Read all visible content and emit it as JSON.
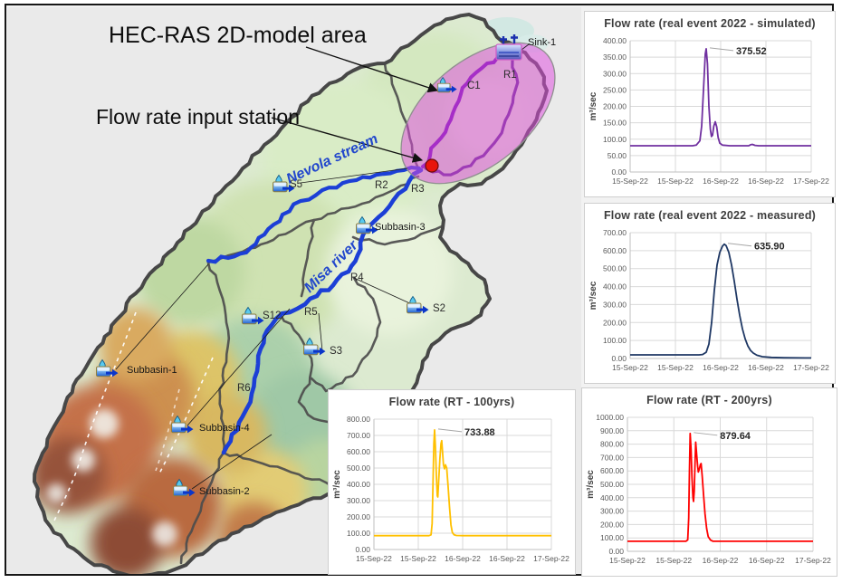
{
  "map": {
    "labels": {
      "model_area": "HEC-RAS 2D-model area",
      "input_station": "Flow rate input station",
      "nevola": "Nevola stream",
      "misa": "Misa river",
      "sink1": "Sink-1",
      "r1": "R1",
      "c1": "C1",
      "r2": "R2",
      "r3": "R3",
      "r4": "R4",
      "r5": "R5",
      "r6": "R6",
      "s2": "S2",
      "s3": "S3",
      "s5": "S5",
      "s12": "S12",
      "subbasin1": "Subbasin-1",
      "subbasin2": "Subbasin-2",
      "subbasin3": "Subbasin-3",
      "subbasin4": "Subbasin-4"
    }
  },
  "chart_data": [
    {
      "type": "line",
      "title": "Flow rate (real event 2022 - simulated)",
      "ylabel": "m³/sec",
      "ylim": [
        0,
        400
      ],
      "ytick_step": 50,
      "x_ticklabels": [
        "15-Sep-22",
        "15-Sep-22",
        "16-Sep-22",
        "16-Sep-22",
        "17-Sep-22"
      ],
      "line_color": "#7030A0",
      "grid": true,
      "legend": "none",
      "annotation": {
        "text": "375.52",
        "x": 0.42,
        "y": 375.52
      },
      "series": [
        [
          0,
          80
        ],
        [
          0.345,
          80
        ],
        [
          0.365,
          82
        ],
        [
          0.385,
          95
        ],
        [
          0.395,
          140
        ],
        [
          0.405,
          250
        ],
        [
          0.415,
          360
        ],
        [
          0.42,
          375.52
        ],
        [
          0.427,
          330
        ],
        [
          0.435,
          200
        ],
        [
          0.443,
          130
        ],
        [
          0.449,
          108
        ],
        [
          0.455,
          112
        ],
        [
          0.462,
          140
        ],
        [
          0.47,
          153
        ],
        [
          0.478,
          138
        ],
        [
          0.486,
          105
        ],
        [
          0.495,
          88
        ],
        [
          0.51,
          82
        ],
        [
          0.55,
          80
        ],
        [
          0.655,
          80
        ],
        [
          0.665,
          83
        ],
        [
          0.675,
          84
        ],
        [
          0.69,
          81
        ],
        [
          0.71,
          80
        ],
        [
          1,
          80
        ]
      ]
    },
    {
      "type": "line",
      "title": "Flow rate (real event 2022 - measured)",
      "ylabel": "m³/sec",
      "ylim": [
        0,
        700
      ],
      "ytick_step": 100,
      "x_ticklabels": [
        "15-Sep-22",
        "15-Sep-22",
        "16-Sep-22",
        "16-Sep-22",
        "17-Sep-22"
      ],
      "line_color": "#1F3864",
      "grid": true,
      "legend": "none",
      "annotation": {
        "text": "635.90",
        "x": 0.52,
        "y": 635.9
      },
      "series": [
        [
          0,
          20
        ],
        [
          0.38,
          20
        ],
        [
          0.4,
          22
        ],
        [
          0.42,
          35
        ],
        [
          0.435,
          80
        ],
        [
          0.45,
          200
        ],
        [
          0.465,
          380
        ],
        [
          0.48,
          520
        ],
        [
          0.495,
          590
        ],
        [
          0.51,
          625
        ],
        [
          0.52,
          635.9
        ],
        [
          0.53,
          628
        ],
        [
          0.545,
          590
        ],
        [
          0.56,
          520
        ],
        [
          0.575,
          430
        ],
        [
          0.59,
          330
        ],
        [
          0.605,
          240
        ],
        [
          0.62,
          165
        ],
        [
          0.635,
          110
        ],
        [
          0.65,
          70
        ],
        [
          0.665,
          45
        ],
        [
          0.68,
          30
        ],
        [
          0.7,
          18
        ],
        [
          0.73,
          10
        ],
        [
          0.78,
          6
        ],
        [
          0.85,
          4
        ],
        [
          1,
          3
        ]
      ]
    },
    {
      "type": "line",
      "title": "Flow rate (RT - 100yrs)",
      "ylabel": "m³/sec",
      "ylim": [
        0,
        800
      ],
      "ytick_step": 100,
      "x_ticklabels": [
        "15-Sep-22",
        "15-Sep-22",
        "16-Sep-22",
        "16-Sep-22",
        "17-Sep-22"
      ],
      "line_color": "#FFC000",
      "grid": true,
      "legend": "none",
      "annotation": {
        "text": "733.88",
        "x": 0.342,
        "y": 733.88
      },
      "series": [
        [
          0,
          85
        ],
        [
          0.31,
          85
        ],
        [
          0.322,
          90
        ],
        [
          0.328,
          160
        ],
        [
          0.333,
          420
        ],
        [
          0.338,
          650
        ],
        [
          0.342,
          733.88
        ],
        [
          0.347,
          620
        ],
        [
          0.352,
          450
        ],
        [
          0.357,
          330
        ],
        [
          0.36,
          322
        ],
        [
          0.365,
          420
        ],
        [
          0.372,
          560
        ],
        [
          0.378,
          650
        ],
        [
          0.382,
          668
        ],
        [
          0.387,
          590
        ],
        [
          0.392,
          520
        ],
        [
          0.398,
          495
        ],
        [
          0.403,
          520
        ],
        [
          0.41,
          500
        ],
        [
          0.418,
          390
        ],
        [
          0.426,
          260
        ],
        [
          0.434,
          150
        ],
        [
          0.442,
          105
        ],
        [
          0.452,
          90
        ],
        [
          0.465,
          86
        ],
        [
          0.5,
          85
        ],
        [
          1,
          85
        ]
      ]
    },
    {
      "type": "line",
      "title": "Flow rate (RT - 200yrs)",
      "ylabel": "m³/sec",
      "ylim": [
        0,
        1000
      ],
      "ytick_step": 100,
      "x_ticklabels": [
        "15-Sep-22",
        "15-Sep-22",
        "16-Sep-22",
        "16-Sep-22",
        "17-Sep-22"
      ],
      "line_color": "#FF0000",
      "grid": true,
      "legend": "none",
      "annotation": {
        "text": "879.64",
        "x": 0.338,
        "y": 879.64
      },
      "series": [
        [
          0,
          75
        ],
        [
          0.315,
          75
        ],
        [
          0.325,
          85
        ],
        [
          0.33,
          250
        ],
        [
          0.334,
          600
        ],
        [
          0.338,
          879.64
        ],
        [
          0.343,
          760
        ],
        [
          0.348,
          550
        ],
        [
          0.353,
          400
        ],
        [
          0.356,
          372
        ],
        [
          0.36,
          450
        ],
        [
          0.364,
          640
        ],
        [
          0.368,
          815
        ],
        [
          0.373,
          720
        ],
        [
          0.378,
          640
        ],
        [
          0.382,
          592
        ],
        [
          0.388,
          615
        ],
        [
          0.393,
          648
        ],
        [
          0.397,
          655
        ],
        [
          0.403,
          560
        ],
        [
          0.41,
          420
        ],
        [
          0.418,
          280
        ],
        [
          0.427,
          170
        ],
        [
          0.435,
          110
        ],
        [
          0.447,
          85
        ],
        [
          0.46,
          76
        ],
        [
          0.5,
          75
        ],
        [
          1,
          75
        ]
      ]
    }
  ]
}
